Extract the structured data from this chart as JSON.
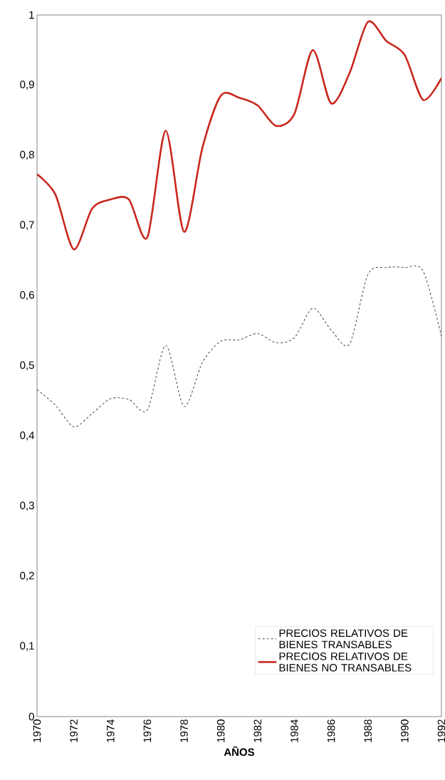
{
  "chart_data": {
    "type": "line",
    "xlabel": "AÑOS",
    "x": [
      1970,
      1971,
      1972,
      1973,
      1974,
      1975,
      1976,
      1977,
      1978,
      1979,
      1980,
      1981,
      1982,
      1983,
      1984,
      1985,
      1986,
      1987,
      1988,
      1989,
      1990,
      1991,
      1992
    ],
    "series": [
      {
        "name": "PRECIOS RELATIVOS DE BIENES TRANSABLES",
        "color": "#555555",
        "line_style": "dashed",
        "values": [
          0.466,
          0.444,
          0.413,
          0.432,
          0.453,
          0.452,
          0.437,
          0.529,
          0.442,
          0.505,
          0.535,
          0.537,
          0.546,
          0.533,
          0.54,
          0.582,
          0.551,
          0.531,
          0.63,
          0.64,
          0.64,
          0.635,
          0.542
        ]
      },
      {
        "name": "PRECIOS RELATIVOS DE BIENES NO TRANSABLES",
        "color": "#c8281e",
        "line_style": "solid",
        "values": [
          0.773,
          0.744,
          0.666,
          0.724,
          0.737,
          0.737,
          0.683,
          0.835,
          0.691,
          0.811,
          0.885,
          0.882,
          0.871,
          0.842,
          0.859,
          0.95,
          0.874,
          0.917,
          0.99,
          0.963,
          0.943,
          0.879,
          0.91
        ]
      }
    ],
    "xlim": [
      1970,
      1992
    ],
    "ylim": [
      0,
      1
    ],
    "xticks": [
      1970,
      1972,
      1974,
      1976,
      1978,
      1980,
      1982,
      1984,
      1986,
      1988,
      1990,
      1992
    ],
    "yticks": [
      0,
      {
        "value": 0.1,
        "label": "0,1"
      },
      {
        "value": 0.2,
        "label": "0,2"
      },
      {
        "value": 0.3,
        "label": "0,3"
      },
      {
        "value": 0.4,
        "label": "0,4"
      },
      {
        "value": 0.5,
        "label": "0,5"
      },
      {
        "value": 0.6,
        "label": "0,6"
      },
      {
        "value": 0.7,
        "label": "0,7"
      },
      {
        "value": 0.8,
        "label": "0,8"
      },
      {
        "value": 0.9,
        "label": "0,9"
      },
      1
    ],
    "grid": false,
    "legend": "bottom right",
    "marker": "none"
  }
}
